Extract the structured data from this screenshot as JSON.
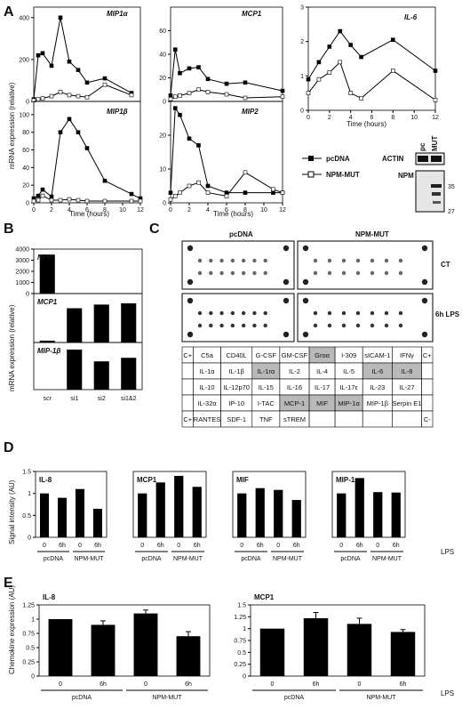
{
  "figure": {
    "panel_labels": [
      "A",
      "B",
      "C",
      "D",
      "E"
    ],
    "units": {
      "mrna_expr": "mRNA expression (relative)",
      "signal": "Signal intensity (AU)",
      "chemokine": "Chemokine expression (AU)"
    },
    "time_hours": "Time (hours)",
    "lps": "LPS",
    "legend": {
      "pcdna": "pcDNA",
      "npm_mut": "NPM-MUT"
    },
    "blot": {
      "lanes": [
        "pc",
        "MUT"
      ],
      "actin": "ACTIN",
      "npm": "NPM",
      "mw": [
        "35",
        "27"
      ]
    },
    "array": {
      "headers": [
        "pcDNA",
        "NPM-MUT"
      ],
      "rows": [
        "CT",
        "6h LPS"
      ],
      "legend_rows": [
        [
          "C+",
          "C5a",
          "CD40L",
          "G-CSF",
          "GM-CSF",
          "Groα",
          "I-309",
          "sICAM-1",
          "IFNγ",
          "C+"
        ],
        [
          "",
          "IL-1α",
          "IL-1β",
          "IL-1rα",
          "IL-2",
          "IL-4",
          "IL-5",
          "IL-6",
          "IL-8",
          ""
        ],
        [
          "",
          "IL-10",
          "IL-12p70",
          "IL-15",
          "IL-16",
          "IL-17",
          "IL-17ε",
          "IL-23",
          "IL-27",
          ""
        ],
        [
          "",
          "IL-32α",
          "IP-10",
          "I-TAC",
          "MCP-1",
          "MIF",
          "MIP-1α",
          "MIP-1β",
          "Serpin E1",
          ""
        ],
        [
          "C+",
          "RANTES",
          "SDF-1",
          "TNF",
          "sTREM",
          "",
          "",
          "",
          "",
          "C-"
        ]
      ],
      "highlighted": [
        "Groα",
        "IL-1rα",
        "IL-6",
        "IL-8",
        "MCP-1",
        "MIF",
        "MIP-1α"
      ]
    },
    "sig": {
      "three": "***",
      "four": "****"
    }
  },
  "chart_data": [
    {
      "id": "A-MIP1a",
      "type": "line",
      "title": "MIP1α",
      "x": [
        0,
        0.5,
        1,
        2,
        3,
        4,
        5,
        6,
        8,
        11
      ],
      "ylim": [
        0,
        450
      ],
      "yticks": [
        0,
        200,
        400
      ],
      "series": [
        {
          "name": "pcDNA",
          "values": [
            10,
            220,
            230,
            170,
            400,
            190,
            150,
            90,
            110,
            40
          ]
        },
        {
          "name": "NPM-MUT",
          "values": [
            5,
            10,
            15,
            25,
            45,
            30,
            25,
            20,
            80,
            30
          ]
        }
      ]
    },
    {
      "id": "A-MCP1",
      "type": "line",
      "title": "MCP1",
      "x": [
        0,
        0.5,
        1,
        2,
        3,
        4,
        6,
        8,
        12
      ],
      "ylim": [
        0,
        80
      ],
      "yticks": [
        0,
        20,
        40,
        60
      ],
      "series": [
        {
          "name": "pcDNA",
          "values": [
            5,
            44,
            24,
            28,
            29,
            19,
            15,
            16,
            9
          ]
        },
        {
          "name": "NPM-MUT",
          "values": [
            2,
            4,
            5,
            7,
            10,
            8,
            6,
            3,
            4
          ]
        }
      ]
    },
    {
      "id": "A-IL6",
      "type": "line",
      "title": "IL-6",
      "x": [
        0,
        1,
        2,
        3,
        4,
        5,
        8,
        12
      ],
      "ylim": [
        0,
        3
      ],
      "yticks": [
        0,
        1,
        2,
        3
      ],
      "xticks": [
        0,
        2,
        4,
        6,
        8,
        10,
        12
      ],
      "series": [
        {
          "name": "pcDNA",
          "values": [
            0.9,
            1.4,
            1.85,
            2.3,
            1.9,
            1.55,
            2.05,
            1.15
          ]
        },
        {
          "name": "NPM-MUT",
          "values": [
            0.5,
            0.9,
            1.1,
            1.4,
            0.5,
            0.35,
            1.15,
            0.3
          ]
        }
      ]
    },
    {
      "id": "A-MIP1b",
      "type": "line",
      "title": "MIP1β",
      "x": [
        0,
        0.5,
        1,
        2,
        3,
        4,
        5,
        6,
        8,
        11,
        12
      ],
      "ylim": [
        0,
        115
      ],
      "yticks": [
        0,
        20,
        40,
        60,
        80,
        100
      ],
      "xticks": [
        0,
        2,
        4,
        6,
        8,
        10,
        12
      ],
      "series": [
        {
          "name": "pcDNA",
          "values": [
            5,
            8,
            15,
            7,
            80,
            95,
            80,
            62,
            25,
            10,
            5
          ]
        },
        {
          "name": "NPM-MUT",
          "values": [
            2,
            3,
            8,
            3,
            3,
            4,
            3,
            2,
            2,
            2,
            2
          ]
        }
      ]
    },
    {
      "id": "A-MIP2",
      "type": "line",
      "title": "MIP2",
      "x": [
        0,
        0.5,
        1,
        2,
        3,
        4,
        6,
        8,
        11,
        12
      ],
      "ylim": [
        0,
        30
      ],
      "yticks": [
        0,
        10,
        20
      ],
      "xticks": [
        0,
        2,
        4,
        6,
        8,
        10,
        12
      ],
      "series": [
        {
          "name": "pcDNA",
          "values": [
            3,
            28,
            26,
            19,
            17,
            5,
            3,
            3,
            3,
            3
          ]
        },
        {
          "name": "NPM-MUT",
          "values": [
            1,
            2,
            3,
            5,
            6,
            3,
            2,
            9,
            4,
            3
          ]
        }
      ]
    },
    {
      "id": "B",
      "type": "bar",
      "categories": [
        "scr",
        "si1",
        "si2",
        "si1&2"
      ],
      "panels": [
        {
          "title": "NPM",
          "values": [
            3500,
            0,
            0,
            0
          ],
          "ylim": [
            0,
            4000
          ],
          "yticks": [
            0,
            1000,
            2000,
            3000,
            4000
          ]
        },
        {
          "title": "MCP1",
          "values": [
            15,
            280,
            310,
            320
          ],
          "ylim": [
            0,
            400
          ]
        },
        {
          "title": "MIP-1β",
          "values": [
            0,
            340,
            240,
            270
          ],
          "ylim": [
            0,
            400
          ]
        }
      ]
    },
    {
      "id": "D",
      "type": "bar",
      "categories": [
        "0",
        "6h",
        "0",
        "6h"
      ],
      "groups": [
        "pcDNA",
        "NPM-MUT"
      ],
      "ylim": [
        0,
        1.5
      ],
      "yticks": [
        0,
        0.5,
        1,
        1.5
      ],
      "panels": [
        {
          "title": "IL-8",
          "values": [
            1.0,
            0.9,
            1.1,
            0.65
          ]
        },
        {
          "title": "MCP1",
          "values": [
            1.0,
            1.25,
            1.4,
            1.15
          ]
        },
        {
          "title": "MIF",
          "values": [
            1.0,
            1.12,
            1.08,
            0.85
          ]
        },
        {
          "title": "MIP-1α",
          "values": [
            1.0,
            1.35,
            1.03,
            1.02
          ]
        }
      ]
    },
    {
      "id": "E-IL8",
      "type": "bar",
      "title": "IL-8",
      "categories": [
        "0",
        "6h",
        "0",
        "6h"
      ],
      "groups": [
        "pcDNA",
        "NPM-MUT"
      ],
      "values": [
        1.0,
        0.9,
        1.1,
        0.7
      ],
      "errors": [
        0,
        0.07,
        0.06,
        0.08
      ],
      "ylim": [
        0,
        1.25
      ],
      "yticks": [
        0,
        0.25,
        0.5,
        0.75,
        1,
        1.25
      ]
    },
    {
      "id": "E-MCP1",
      "type": "bar",
      "title": "MCP1",
      "categories": [
        "0",
        "6h",
        "0",
        "6h"
      ],
      "groups": [
        "pcDNA",
        "NPM-MUT"
      ],
      "values": [
        1.0,
        1.22,
        1.1,
        0.93
      ],
      "errors": [
        0,
        0.12,
        0.12,
        0.05
      ],
      "ylim": [
        0,
        1.5
      ],
      "yticks": [
        0,
        0.25,
        0.5,
        0.75,
        1,
        1.25,
        1.5
      ]
    }
  ]
}
